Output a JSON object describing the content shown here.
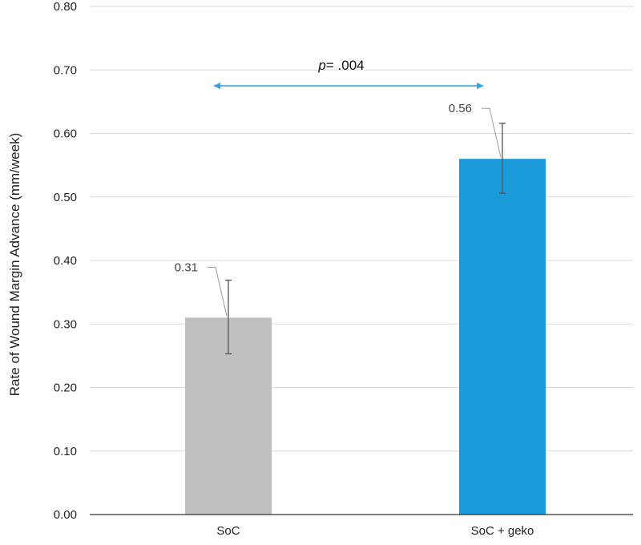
{
  "chart_data": {
    "type": "bar",
    "categories": [
      "SoC",
      "SoC + geko"
    ],
    "values": [
      0.31,
      0.56
    ],
    "error_bars": [
      {
        "low": 0.253,
        "high": 0.369
      },
      {
        "low": 0.506,
        "high": 0.616
      }
    ],
    "data_labels": [
      "0.31",
      "0.56"
    ],
    "colors": [
      "#bfbfbf",
      "#1b9ad9"
    ],
    "ylabel": "Rate of Wound Margin Advance (mm/week)",
    "xlabel": "",
    "ylim": [
      0,
      0.8
    ],
    "yticks": [
      0.0,
      0.1,
      0.2,
      0.3,
      0.4,
      0.5,
      0.6,
      0.7,
      0.8
    ],
    "ytick_labels": [
      "0.00",
      "0.10",
      "0.20",
      "0.30",
      "0.40",
      "0.50",
      "0.60",
      "0.70",
      "0.80"
    ],
    "grid": true,
    "annotation": {
      "italic": "p",
      "text": "= .004",
      "arrow_color": "#3ba3db",
      "y": 0.675
    }
  }
}
